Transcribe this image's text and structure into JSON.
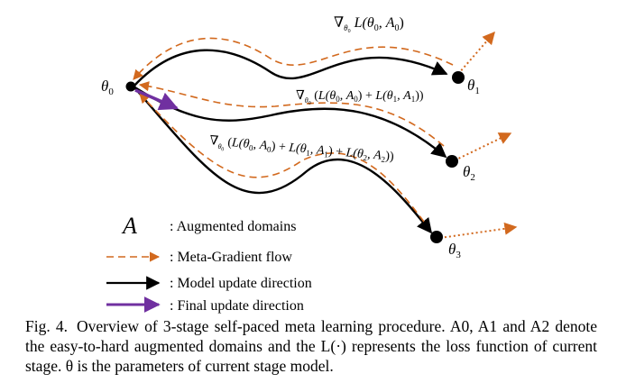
{
  "colors": {
    "model_update": "#000000",
    "meta_gradient": "#d2691e",
    "final_update": "#7030a0"
  },
  "nodes": {
    "theta0": "θ0",
    "theta1": "θ1",
    "theta2": "θ2",
    "theta3": "θ3"
  },
  "gradient_labels": {
    "grad1": "∇θ0 L(θ0, A0)",
    "grad2": "∇θ0 (L(θ0, A0) + L(θ1, A1))",
    "grad3": "∇θ0 (L(θ0, A0) + L(θ1, A1) + L(θ2, A2))"
  },
  "legend": {
    "symbol_A": "A",
    "augmented": ": Augmented domains",
    "meta_gradient": ": Meta-Gradient flow",
    "model_update": ": Model update direction",
    "final_update": ": Final update direction"
  },
  "caption": {
    "fig_label": "Fig. 4.",
    "text": "Overview of 3-stage self-paced meta learning procedure. A0, A1 and A2 denote the easy-to-hard augmented domains and the L(·) represents the loss function of current stage. θ is the parameters of current stage model."
  }
}
